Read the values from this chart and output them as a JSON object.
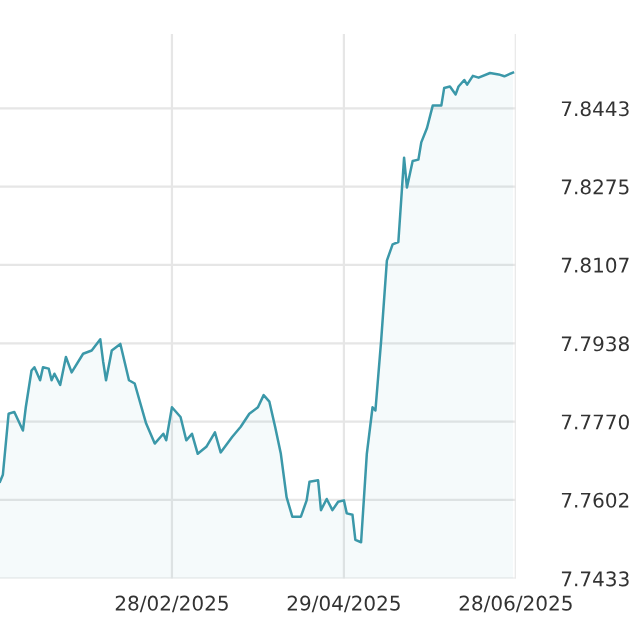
{
  "chart_data": {
    "type": "area",
    "grid": true,
    "legend": false,
    "xlim": [
      "2024-12-30",
      "2025-06-28"
    ],
    "xticks": [
      {
        "value": "2025-02-28",
        "label": "28/02/2025"
      },
      {
        "value": "2025-04-29",
        "label": "29/04/2025"
      },
      {
        "value": "2025-06-28",
        "label": "28/06/2025"
      }
    ],
    "ylim": [
      7.7433,
      7.8603
    ],
    "yticks": [
      7.7433,
      7.7602,
      {
        "value": 7.777,
        "label": "7.7770"
      },
      7.7938,
      7.8107,
      7.8275,
      7.8443
    ],
    "x": [
      "2024-12-30",
      "2024-12-31",
      "2025-01-02",
      "2025-01-04",
      "2025-01-07",
      "2025-01-08",
      "2025-01-10",
      "2025-01-11",
      "2025-01-13",
      "2025-01-14",
      "2025-01-16",
      "2025-01-17",
      "2025-01-18",
      "2025-01-20",
      "2025-01-22",
      "2025-01-24",
      "2025-01-28",
      "2025-01-31",
      "2025-02-03",
      "2025-02-04",
      "2025-02-05",
      "2025-02-07",
      "2025-02-10",
      "2025-02-13",
      "2025-02-15",
      "2025-02-19",
      "2025-02-22",
      "2025-02-25",
      "2025-02-26",
      "2025-02-28",
      "2025-03-03",
      "2025-03-05",
      "2025-03-07",
      "2025-03-09",
      "2025-03-12",
      "2025-03-15",
      "2025-03-17",
      "2025-03-21",
      "2025-03-24",
      "2025-03-27",
      "2025-03-30",
      "2025-04-01",
      "2025-04-03",
      "2025-04-05",
      "2025-04-07",
      "2025-04-09",
      "2025-04-11",
      "2025-04-14",
      "2025-04-16",
      "2025-04-17",
      "2025-04-20",
      "2025-04-21",
      "2025-04-23",
      "2025-04-25",
      "2025-04-27",
      "2025-04-29",
      "2025-04-30",
      "2025-05-02",
      "2025-05-03",
      "2025-05-05",
      "2025-05-07",
      "2025-05-09",
      "2025-05-10",
      "2025-05-12",
      "2025-05-14",
      "2025-05-16",
      "2025-05-18",
      "2025-05-20",
      "2025-05-21",
      "2025-05-23",
      "2025-05-25",
      "2025-05-26",
      "2025-05-28",
      "2025-05-30",
      "2025-06-02",
      "2025-06-03",
      "2025-06-05",
      "2025-06-07",
      "2025-06-08",
      "2025-06-10",
      "2025-06-11",
      "2025-06-13",
      "2025-06-15",
      "2025-06-19",
      "2025-06-22",
      "2025-06-24",
      "2025-06-27"
    ],
    "series": [
      {
        "color": "#3b98a9",
        "values": [
          7.7641,
          7.7656,
          7.7787,
          7.7791,
          7.7751,
          7.7801,
          7.788,
          7.7887,
          7.7859,
          7.7887,
          7.7884,
          7.7859,
          7.7873,
          7.7849,
          7.7909,
          7.7876,
          7.7916,
          7.7923,
          7.7947,
          7.7899,
          7.7859,
          7.7923,
          7.7937,
          7.7859,
          7.7852,
          7.7766,
          7.7723,
          7.7744,
          7.773,
          7.7801,
          7.778,
          7.773,
          7.7744,
          7.7701,
          7.7716,
          7.7747,
          7.7704,
          7.7737,
          7.7759,
          7.7787,
          7.7801,
          7.7827,
          7.7813,
          7.7759,
          7.7701,
          7.7608,
          7.7566,
          7.7566,
          7.7601,
          7.7641,
          7.7644,
          7.758,
          7.7604,
          7.758,
          7.7598,
          7.7601,
          7.7573,
          7.757,
          7.7516,
          7.7511,
          7.7701,
          7.7801,
          7.7794,
          7.7944,
          7.8116,
          7.8151,
          7.8156,
          7.8337,
          7.8273,
          7.833,
          7.8333,
          7.837,
          7.8401,
          7.8449,
          7.8449,
          7.8487,
          7.849,
          7.8473,
          7.849,
          7.8504,
          7.8494,
          7.8513,
          7.8509,
          7.8519,
          7.8516,
          7.8512,
          7.852
        ]
      }
    ]
  }
}
